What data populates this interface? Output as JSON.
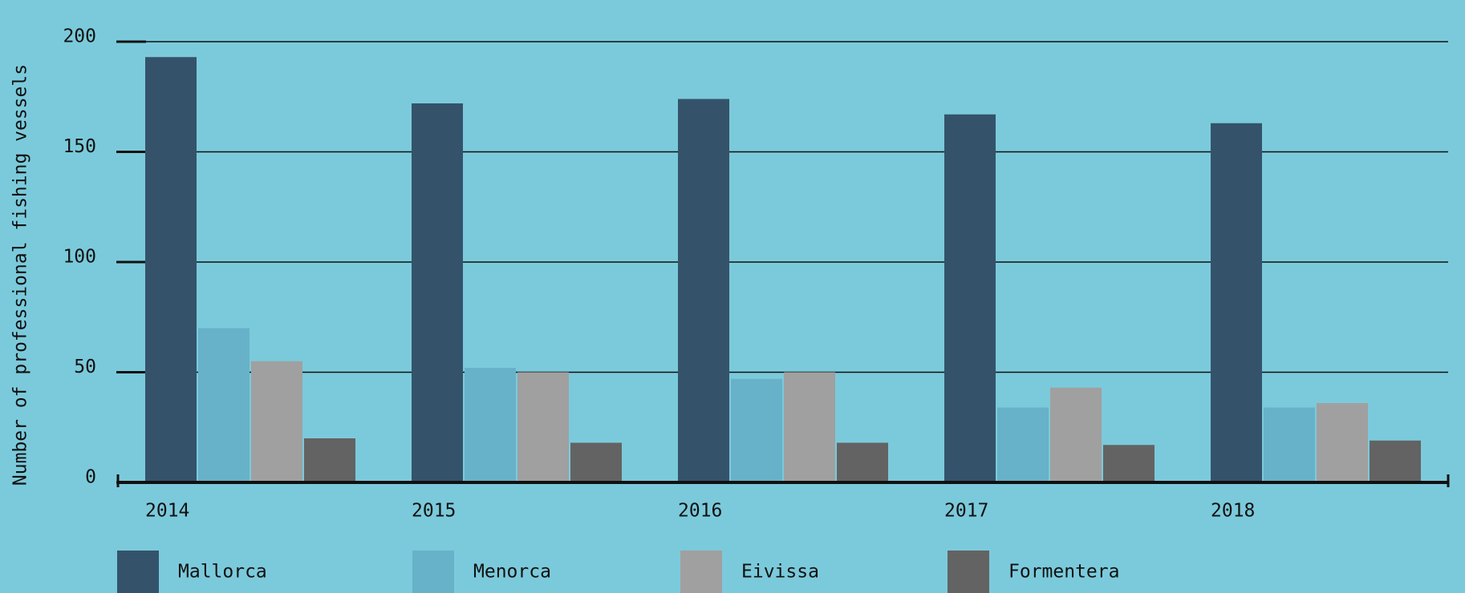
{
  "chart_data": {
    "type": "bar",
    "y_label": "Number of professional fishing vessels",
    "categories": [
      "2014",
      "2015",
      "2016",
      "2017",
      "2018"
    ],
    "series": [
      {
        "name": "Mallorca",
        "color": "#34536b",
        "values": [
          193,
          172,
          174,
          167,
          163
        ]
      },
      {
        "name": "Menorca",
        "color": "#67b2c8",
        "values": [
          70,
          52,
          47,
          34,
          34
        ]
      },
      {
        "name": "Eivissa",
        "color": "#a0a0a0",
        "values": [
          55,
          50,
          50,
          43,
          36
        ]
      },
      {
        "name": "Formentera",
        "color": "#636363",
        "values": [
          20,
          18,
          18,
          17,
          19
        ]
      }
    ],
    "ylim": [
      0,
      200
    ],
    "yticks": [
      0,
      50,
      100,
      150,
      200
    ],
    "grid": true
  }
}
